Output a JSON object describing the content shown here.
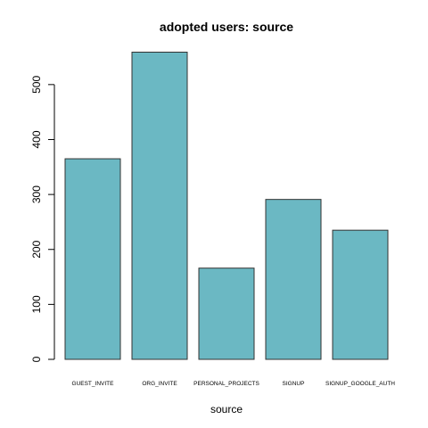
{
  "chart_data": {
    "type": "bar",
    "title": "adopted users: source",
    "xlabel": "source",
    "ylabel": "",
    "categories": [
      "GUEST_INVITE",
      "ORG_INVITE",
      "PERSONAL_PROJECTS",
      "SIGNUP",
      "SIGNUP_GOOGLE_AUTH"
    ],
    "values": [
      365,
      559,
      166,
      291,
      235
    ],
    "yticks": [
      0,
      100,
      200,
      300,
      400,
      500
    ],
    "ylim": [
      0,
      559
    ],
    "bar_color": "#6bb8c3",
    "grid": false
  }
}
